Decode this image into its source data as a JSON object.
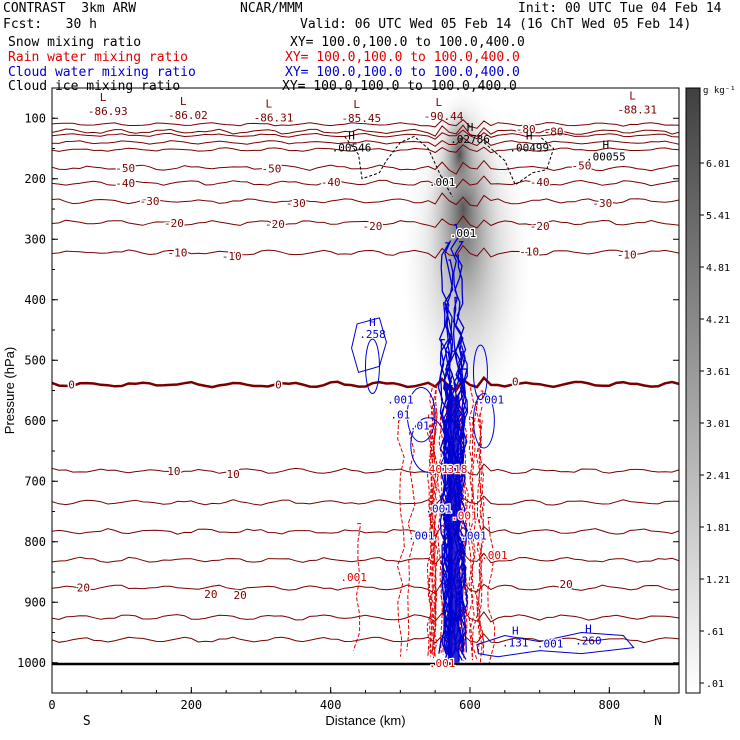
{
  "header": {
    "left_title": "CONTRAST  3km ARW",
    "center_title": "NCAR/MMM",
    "init": "Init: 00 UTC Tue 04 Feb 14",
    "fcst": "Fcst:   30 h",
    "valid": "Valid: 06 UTC Wed 05 Feb 14 (16 ChT Wed 05 Feb 14)",
    "fields": [
      {
        "name": "Snow mixing ratio",
        "xy": "XY= 100.0,100.0 to 100.0,400.0",
        "color": "#000000"
      },
      {
        "name": "Rain water mixing ratio",
        "xy": "XY= 100.0,100.0 to 100.0,400.0",
        "color": "#e00000"
      },
      {
        "name": "Cloud water mixing ratio",
        "xy": "XY= 100.0,100.0 to 100.0,400.0",
        "color": "#0000d0"
      },
      {
        "name": "Cloud ice mixing ratio",
        "xy": "XY= 100.0,100.0 to 100.0,400.0",
        "color": "#000000"
      }
    ]
  },
  "colorbar": {
    "unit": "g kg⁻¹",
    "labels": [
      "6.01",
      "5.41",
      "4.81",
      "4.21",
      "3.61",
      "3.01",
      "2.41",
      "1.81",
      "1.21",
      ".61",
      ".01"
    ]
  },
  "colors": {
    "temp_contour": "#7a0000",
    "rain": "#e00000",
    "cloud_water": "#0000d0",
    "snow_shading": "#4a4a4a"
  },
  "chart_data": {
    "type": "contour-cross-section",
    "xlabel": "Distance (km)",
    "ylabel": "Pressure (hPa)",
    "xlim": [
      0,
      900
    ],
    "ylim": [
      1050,
      50
    ],
    "x_ticks": [
      0,
      200,
      400,
      600,
      800
    ],
    "y_ticks": [
      100,
      200,
      300,
      400,
      500,
      600,
      700,
      800,
      900,
      1000
    ],
    "x_end_labels": {
      "left": "S",
      "right": "N"
    },
    "temperature_contours": [
      {
        "p": 122,
        "label": "-80",
        "label_x": 720
      },
      {
        "p": 182,
        "label": "-50",
        "label_x": 105
      },
      {
        "p": 207,
        "label": "-40",
        "label_x": 105
      },
      {
        "p": 237,
        "label": "-30",
        "label_x": 140
      },
      {
        "p": 273,
        "label": "-20",
        "label_x": 175
      },
      {
        "p": 322,
        "label": "-10",
        "label_x": 180
      },
      {
        "p": 540,
        "label": "0",
        "label_x": 28
      },
      {
        "p": 683,
        "label": "10",
        "label_x": 175
      },
      {
        "p": 735,
        "label": "",
        "label_x": 0
      },
      {
        "p": 783,
        "label": "",
        "label_x": 0
      },
      {
        "p": 830,
        "label": "",
        "label_x": 0
      },
      {
        "p": 876,
        "label": "20",
        "label_x": 45
      },
      {
        "p": 925,
        "label": "",
        "label_x": 0
      },
      {
        "p": 962,
        "label": "",
        "label_x": 0
      }
    ],
    "extra_temp_labels": [
      {
        "x": 315,
        "p": 183,
        "text": "-50"
      },
      {
        "x": 760,
        "p": 178,
        "text": "-50"
      },
      {
        "x": 680,
        "p": 118,
        "text": "-80"
      },
      {
        "x": 400,
        "p": 205,
        "text": "-40"
      },
      {
        "x": 700,
        "p": 205,
        "text": "-40"
      },
      {
        "x": 350,
        "p": 240,
        "text": "-30"
      },
      {
        "x": 790,
        "p": 240,
        "text": "-30"
      },
      {
        "x": 320,
        "p": 275,
        "text": "-20"
      },
      {
        "x": 460,
        "p": 278,
        "text": "-20"
      },
      {
        "x": 700,
        "p": 278,
        "text": "-20"
      },
      {
        "x": 258,
        "p": 328,
        "text": "-10"
      },
      {
        "x": 685,
        "p": 320,
        "text": "-10"
      },
      {
        "x": 825,
        "p": 325,
        "text": "-10"
      },
      {
        "x": 325,
        "p": 540,
        "text": "0"
      },
      {
        "x": 665,
        "p": 535,
        "text": "0"
      },
      {
        "x": 260,
        "p": 688,
        "text": "10"
      },
      {
        "x": 738,
        "p": 870,
        "text": "20"
      },
      {
        "x": 228,
        "p": 886,
        "text": "20"
      },
      {
        "x": 270,
        "p": 888,
        "text": "20"
      }
    ],
    "minima": [
      {
        "x": 80,
        "p": 78,
        "value": "-86.93"
      },
      {
        "x": 195,
        "p": 85,
        "value": "-86.02"
      },
      {
        "x": 318,
        "p": 89,
        "value": "-86.31"
      },
      {
        "x": 444,
        "p": 90,
        "value": "-85.45"
      },
      {
        "x": 562,
        "p": 86,
        "value": "-90.44"
      },
      {
        "x": 840,
        "p": 76,
        "value": "-88.31"
      }
    ],
    "maxima": [
      {
        "x": 430,
        "p": 142,
        "value": ".00546"
      },
      {
        "x": 600,
        "p": 128,
        "value": ".02786"
      },
      {
        "x": 685,
        "p": 142,
        "value": ".00499"
      },
      {
        "x": 795,
        "p": 157,
        "value": ".00055"
      },
      {
        "x": 460,
        "p": 450,
        "value": ".258"
      },
      {
        "x": 770,
        "p": 957,
        "value": ".260"
      },
      {
        "x": 665,
        "p": 960,
        "value": ".131"
      }
    ],
    "small_labels": [
      {
        "x": 560,
        "p": 205,
        "text": ".001",
        "color": "#000000"
      },
      {
        "x": 590,
        "p": 290,
        "text": ".001",
        "color": "#000000"
      },
      {
        "x": 500,
        "p": 565,
        "text": ".001",
        "color": "#0000d0"
      },
      {
        "x": 630,
        "p": 565,
        "text": ".001",
        "color": "#0000d0"
      },
      {
        "x": 500,
        "p": 590,
        "text": ".01",
        "color": "#0000d0"
      },
      {
        "x": 528,
        "p": 608,
        "text": ".01",
        "color": "#0000d0"
      },
      {
        "x": 555,
        "p": 680,
        "text": "401",
        "color": "#e00000"
      },
      {
        "x": 582,
        "p": 680,
        "text": "318",
        "color": "#e00000"
      },
      {
        "x": 555,
        "p": 745,
        "text": ".001",
        "color": "#0000d0"
      },
      {
        "x": 592,
        "p": 757,
        "text": ".001",
        "color": "#e00000"
      },
      {
        "x": 530,
        "p": 790,
        "text": ".001",
        "color": "#0000d0"
      },
      {
        "x": 605,
        "p": 790,
        "text": ".001",
        "color": "#0000d0"
      },
      {
        "x": 635,
        "p": 822,
        "text": ".001",
        "color": "#e00000"
      },
      {
        "x": 433,
        "p": 858,
        "text": ".001",
        "color": "#e00000"
      },
      {
        "x": 715,
        "p": 968,
        "text": ".001",
        "color": "#0000d0"
      },
      {
        "x": 560,
        "p": 1000,
        "text": ".001",
        "color": "#e00000"
      }
    ]
  }
}
